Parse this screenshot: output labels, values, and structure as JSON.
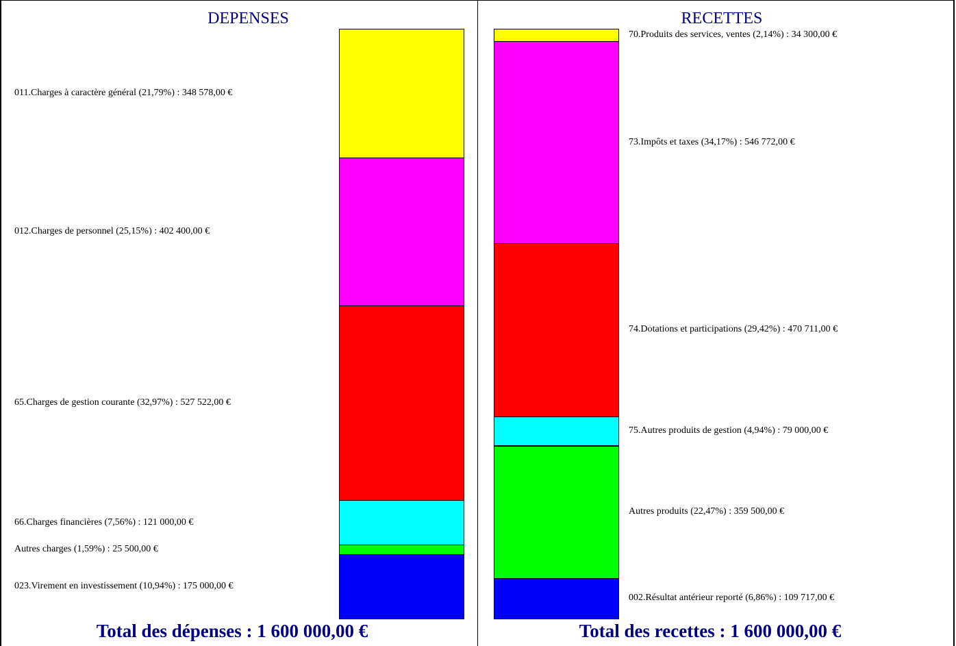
{
  "chart_data": [
    {
      "type": "bar",
      "title": "DEPENSES",
      "stacked": true,
      "currency": "€",
      "segments": [
        {
          "label": "011.Charges à caractère général (21,79%) : 348 578,00 €",
          "value": 348578,
          "percent": 21.79,
          "color": "#ffff00"
        },
        {
          "label": "012.Charges de personnel (25,15%) : 402 400,00 €",
          "value": 402400,
          "percent": 25.15,
          "color": "#ff00ff"
        },
        {
          "label": "65.Charges de gestion courante (32,97%) : 527 522,00 €",
          "value": 527522,
          "percent": 32.97,
          "color": "#ff0000"
        },
        {
          "label": "66.Charges financières (7,56%) : 121 000,00 €",
          "value": 121000,
          "percent": 7.56,
          "color": "#00ffff"
        },
        {
          "label": "Autres charges (1,59%) : 25 500,00 €",
          "value": 25500,
          "percent": 1.59,
          "color": "#00ff00"
        },
        {
          "label": "023.Virement en investissement (10,94%) : 175 000,00 €",
          "value": 175000,
          "percent": 10.94,
          "color": "#0000ff"
        }
      ],
      "total_prefix": "Total des dépenses : ",
      "total_value": "1 600 000,00 €"
    },
    {
      "type": "bar",
      "title": "RECETTES",
      "stacked": true,
      "currency": "€",
      "segments": [
        {
          "label": "70.Produits des services, ventes (2,14%) : 34 300,00 €",
          "value": 34300,
          "percent": 2.14,
          "color": "#ffff00"
        },
        {
          "label": "73.Impôts et taxes (34,17%) : 546 772,00 €",
          "value": 546772,
          "percent": 34.17,
          "color": "#ff00ff"
        },
        {
          "label": "74.Dotations et participations (29,42%) : 470 711,00 €",
          "value": 470711,
          "percent": 29.42,
          "color": "#ff0000"
        },
        {
          "label": "75.Autres produits de gestion (4,94%) : 79 000,00 €",
          "value": 79000,
          "percent": 4.94,
          "color": "#00ffff"
        },
        {
          "label": "Autres produits (22,47%) : 359 500,00 €",
          "value": 359500,
          "percent": 22.47,
          "color": "#00ff00"
        },
        {
          "label": "002.Résultat antérieur reporté (6,86%) : 109 717,00 €",
          "value": 109717,
          "percent": 6.86,
          "color": "#0000ff"
        }
      ],
      "total_prefix": "Total des recettes : ",
      "total_value": "1 600 000,00 €"
    }
  ]
}
